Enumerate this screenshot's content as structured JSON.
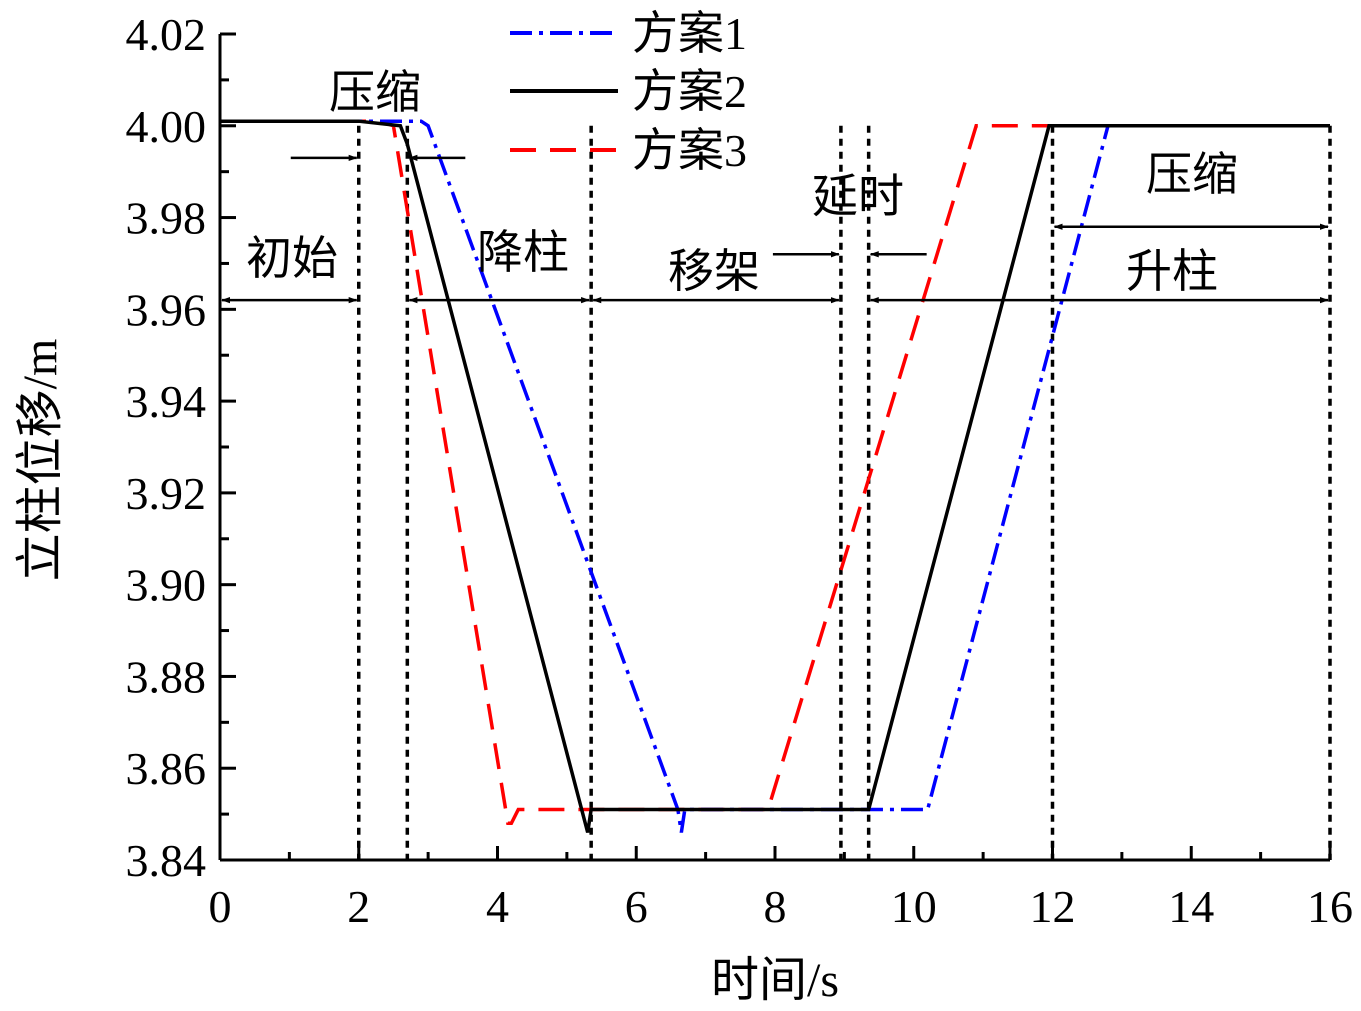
{
  "chart_data": {
    "type": "line",
    "xlabel": "时间/s",
    "ylabel": "立柱位移/m",
    "xlim": [
      0,
      16
    ],
    "ylim": [
      3.84,
      4.02
    ],
    "xticks": [
      "0",
      "2",
      "4",
      "6",
      "8",
      "10",
      "12",
      "14",
      "16"
    ],
    "yticks": [
      "3.84",
      "3.86",
      "3.88",
      "3.90",
      "3.92",
      "3.94",
      "3.96",
      "3.98",
      "4.00",
      "4.02"
    ],
    "grid": false,
    "legend_position": "top-center",
    "series": [
      {
        "name": "方案1",
        "color": "#0000ff",
        "style": "dash-dot",
        "x": [
          0,
          2.9,
          3.0,
          6.6,
          6.65,
          6.7,
          10.2,
          12.8,
          16
        ],
        "y": [
          4.001,
          4.001,
          4.0,
          3.851,
          3.846,
          3.851,
          3.851,
          4.0,
          4.0
        ]
      },
      {
        "name": "方案2",
        "color": "#000000",
        "style": "solid",
        "x": [
          0,
          2.0,
          2.6,
          2.7,
          5.3,
          5.35,
          9.35,
          11.95,
          16
        ],
        "y": [
          4.001,
          4.001,
          4.0,
          3.996,
          3.846,
          3.851,
          3.851,
          4.0,
          4.0
        ]
      },
      {
        "name": "方案3",
        "color": "#ff0000",
        "style": "dashed",
        "x": [
          0,
          2.3,
          2.5,
          4.15,
          4.2,
          4.3,
          7.9,
          10.9,
          16
        ],
        "y": [
          4.001,
          4.001,
          4.0,
          3.848,
          3.848,
          3.851,
          3.851,
          4.0,
          4.0
        ]
      }
    ],
    "phase_lines_x": [
      2.0,
      2.7,
      5.35,
      8.95,
      9.35,
      12.0,
      16.0
    ],
    "annotations": [
      {
        "text": "初始",
        "x_from": 0,
        "x_to": 2.0,
        "y": 3.962
      },
      {
        "text": "压缩",
        "x_from": 2.0,
        "x_to": 2.7,
        "y": 3.993
      },
      {
        "text": "降柱",
        "x_from": 2.7,
        "x_to": 5.35,
        "y": 3.962
      },
      {
        "text": "移架",
        "x_from": 5.35,
        "x_to": 8.95,
        "y": 3.962
      },
      {
        "text": "延时",
        "x_from": 8.95,
        "x_to": 9.35,
        "y": 3.972
      },
      {
        "text": "升柱",
        "x_from": 9.35,
        "x_to": 16.0,
        "y": 3.962
      },
      {
        "text": "压缩",
        "x_from": 12.0,
        "x_to": 16.0,
        "y": 3.978
      }
    ]
  }
}
